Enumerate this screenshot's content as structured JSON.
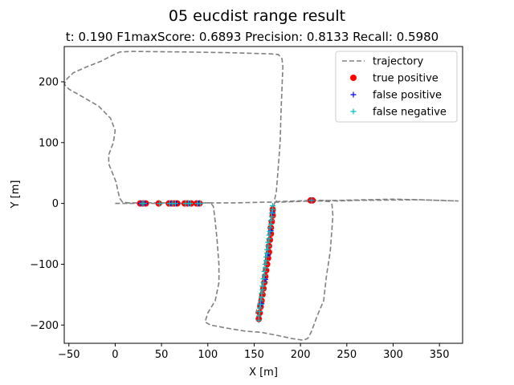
{
  "chart_data": {
    "type": "line",
    "title": "05 eucdist range result",
    "subtitle": "t:  0.190  F1maxScore:  0.6893  Precision:  0.8133  Recall:  0.5980",
    "xlabel": "X [m]",
    "ylabel": "Y [m]",
    "xlim": [
      -55,
      375
    ],
    "ylim": [
      -230,
      258
    ],
    "xticks": [
      -50,
      0,
      50,
      100,
      150,
      200,
      250,
      300,
      350
    ],
    "yticks": [
      -200,
      -100,
      0,
      100,
      200
    ],
    "grid": false,
    "legend_position": "top-right",
    "series": [
      {
        "name": "trajectory",
        "style": "dashed-line",
        "color": "#808080",
        "points": [
          [
            0,
            0
          ],
          [
            5,
            0
          ],
          [
            15,
            0
          ],
          [
            40,
            0
          ],
          [
            70,
            0
          ],
          [
            100,
            1
          ],
          [
            130,
            1
          ],
          [
            160,
            2
          ],
          [
            175,
            2
          ],
          [
            195,
            3
          ],
          [
            215,
            4
          ],
          [
            240,
            5
          ],
          [
            270,
            6
          ],
          [
            300,
            7
          ],
          [
            330,
            6
          ],
          [
            370,
            4
          ],
          [
            330,
            6
          ],
          [
            260,
            5
          ],
          [
            240,
            4
          ],
          [
            225,
            5
          ],
          [
            215,
            5
          ],
          [
            175,
            3
          ],
          [
            172,
            5
          ],
          [
            174,
            20
          ],
          [
            176,
            60
          ],
          [
            178,
            100
          ],
          [
            179,
            150
          ],
          [
            181,
            225
          ],
          [
            180,
            238
          ],
          [
            176,
            245
          ],
          [
            166,
            246
          ],
          [
            120,
            248
          ],
          [
            75,
            249
          ],
          [
            20,
            250
          ],
          [
            5,
            249
          ],
          [
            -5,
            242
          ],
          [
            -15,
            234
          ],
          [
            -30,
            225
          ],
          [
            -45,
            215
          ],
          [
            -52,
            205
          ],
          [
            -55,
            196
          ],
          [
            -50,
            188
          ],
          [
            -35,
            175
          ],
          [
            -18,
            160
          ],
          [
            -5,
            140
          ],
          [
            0,
            120
          ],
          [
            -2,
            100
          ],
          [
            -7,
            80
          ],
          [
            -7,
            65
          ],
          [
            -3,
            50
          ],
          [
            1,
            35
          ],
          [
            3,
            20
          ],
          [
            5,
            8
          ],
          [
            8,
            2
          ],
          [
            15,
            1
          ],
          [
            55,
            1
          ],
          [
            98,
            1
          ],
          [
            103,
            1
          ],
          [
            106,
            -5
          ],
          [
            108,
            -30
          ],
          [
            110,
            -60
          ],
          [
            112,
            -100
          ],
          [
            112,
            -130
          ],
          [
            108,
            -160
          ],
          [
            100,
            -180
          ],
          [
            97,
            -195
          ],
          [
            103,
            -200
          ],
          [
            120,
            -205
          ],
          [
            140,
            -210
          ],
          [
            158,
            -212
          ],
          [
            168,
            -215
          ],
          [
            178,
            -218
          ],
          [
            190,
            -222
          ],
          [
            203,
            -225
          ],
          [
            208,
            -222
          ],
          [
            212,
            -210
          ],
          [
            218,
            -185
          ],
          [
            225,
            -160
          ],
          [
            228,
            -120
          ],
          [
            232,
            -80
          ],
          [
            234,
            -40
          ],
          [
            235,
            -20
          ],
          [
            234,
            -2
          ],
          [
            231,
            3
          ],
          [
            225,
            4
          ],
          [
            215,
            4
          ]
        ],
        "secondary_points": [
          [
            155,
            -193
          ],
          [
            152,
            -180
          ],
          [
            155,
            -160
          ],
          [
            158,
            -140
          ],
          [
            160,
            -110
          ],
          [
            163,
            -80
          ],
          [
            165,
            -55
          ],
          [
            168,
            -30
          ],
          [
            170,
            -10
          ],
          [
            172,
            0
          ],
          [
            175,
            3
          ]
        ]
      },
      {
        "name": "true positive",
        "style": "marker-circle",
        "color": "#ff0000",
        "points": [
          [
            27,
            0
          ],
          [
            30,
            0
          ],
          [
            33,
            0
          ],
          [
            47,
            0
          ],
          [
            58,
            0
          ],
          [
            61,
            0
          ],
          [
            64,
            0
          ],
          [
            67,
            0
          ],
          [
            75,
            0
          ],
          [
            78,
            0
          ],
          [
            82,
            0
          ],
          [
            88,
            0
          ],
          [
            91,
            0
          ],
          [
            211,
            5
          ],
          [
            213,
            5
          ],
          [
            155,
            -190
          ],
          [
            156,
            -180
          ],
          [
            157,
            -170
          ],
          [
            158,
            -160
          ],
          [
            159,
            -150
          ],
          [
            160,
            -140
          ],
          [
            161,
            -130
          ],
          [
            162,
            -120
          ],
          [
            163,
            -110
          ],
          [
            164,
            -100
          ],
          [
            165,
            -90
          ],
          [
            166,
            -80
          ],
          [
            166,
            -70
          ],
          [
            167,
            -60
          ],
          [
            168,
            -50
          ],
          [
            168,
            -40
          ],
          [
            169,
            -30
          ],
          [
            170,
            -20
          ],
          [
            170,
            -10
          ]
        ]
      },
      {
        "name": "false positive",
        "style": "marker-plus",
        "color": "#0000ff",
        "points": [
          [
            28,
            0
          ],
          [
            32,
            0
          ],
          [
            60,
            0
          ],
          [
            66,
            0
          ],
          [
            80,
            0
          ],
          [
            90,
            0
          ],
          [
            212,
            5
          ],
          [
            158,
            -165
          ],
          [
            162,
            -125
          ],
          [
            165,
            -85
          ],
          [
            168,
            -45
          ],
          [
            170,
            -15
          ]
        ]
      },
      {
        "name": "false negative",
        "style": "marker-plus",
        "color": "#00bfbf",
        "points": [
          [
            29,
            0
          ],
          [
            31,
            0
          ],
          [
            48,
            0
          ],
          [
            59,
            0
          ],
          [
            62,
            0
          ],
          [
            65,
            0
          ],
          [
            76,
            0
          ],
          [
            79,
            0
          ],
          [
            81,
            0
          ],
          [
            89,
            0
          ],
          [
            92,
            0
          ],
          [
            212,
            5
          ],
          [
            155,
            -192
          ],
          [
            155,
            -185
          ],
          [
            156,
            -178
          ],
          [
            156,
            -172
          ],
          [
            157,
            -166
          ],
          [
            157,
            -160
          ],
          [
            158,
            -154
          ],
          [
            158,
            -148
          ],
          [
            159,
            -142
          ],
          [
            159,
            -136
          ],
          [
            160,
            -130
          ],
          [
            160,
            -124
          ],
          [
            161,
            -118
          ],
          [
            161,
            -112
          ],
          [
            162,
            -106
          ],
          [
            162,
            -100
          ],
          [
            163,
            -94
          ],
          [
            163,
            -88
          ],
          [
            164,
            -82
          ],
          [
            164,
            -76
          ],
          [
            165,
            -70
          ],
          [
            165,
            -64
          ],
          [
            166,
            -58
          ],
          [
            166,
            -52
          ],
          [
            167,
            -46
          ],
          [
            167,
            -40
          ],
          [
            168,
            -34
          ],
          [
            168,
            -28
          ],
          [
            169,
            -22
          ],
          [
            169,
            -16
          ],
          [
            170,
            -10
          ],
          [
            170,
            -4
          ]
        ]
      }
    ]
  }
}
